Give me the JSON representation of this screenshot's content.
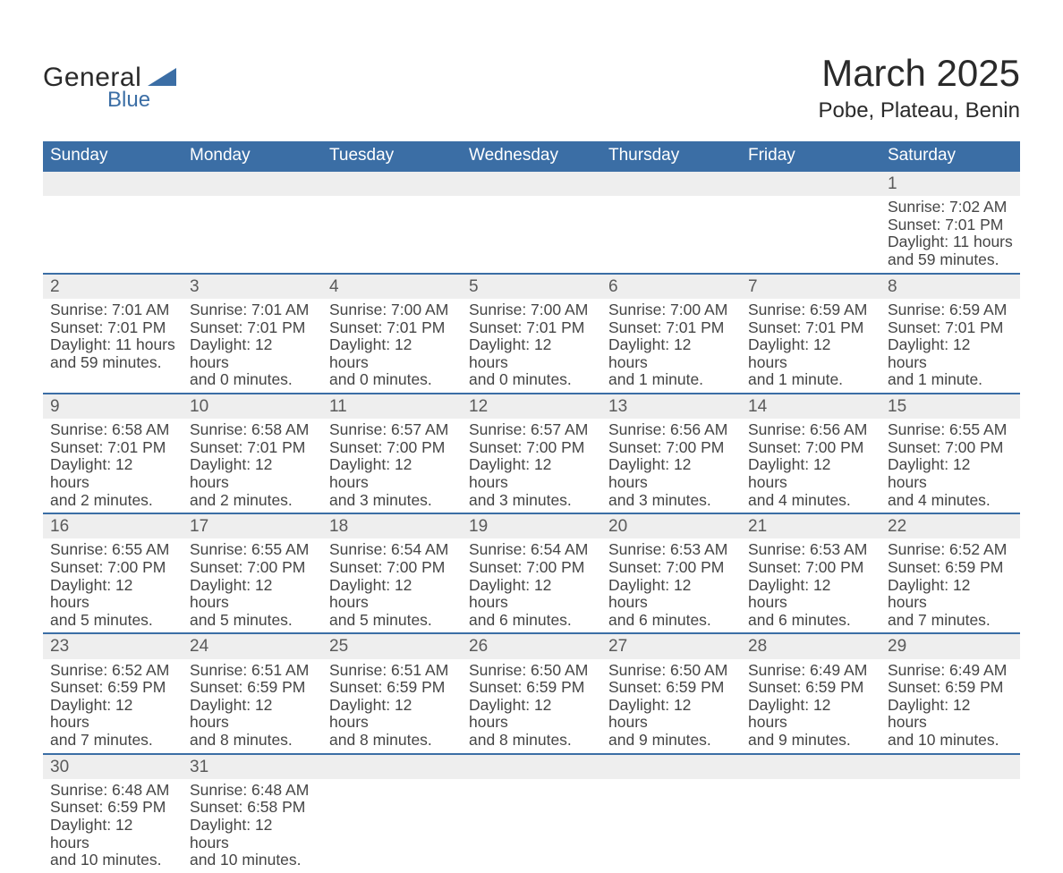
{
  "brand": {
    "general": "General",
    "blue": "Blue",
    "shape_color": "#3b6ea5"
  },
  "title": "March 2025",
  "subtitle": "Pobe, Plateau, Benin",
  "header_bg": "#3b6ea5",
  "daynum_bg": "#eeeeee",
  "border_color": "#3b6ea5",
  "text_color": "#454545",
  "font_size_body_pt": 13,
  "font_size_daynum_pt": 14,
  "font_size_header_pt": 14,
  "font_size_title_pt": 32,
  "font_size_subtitle_pt": 18,
  "days_of_week": [
    "Sunday",
    "Monday",
    "Tuesday",
    "Wednesday",
    "Thursday",
    "Friday",
    "Saturday"
  ],
  "weeks": [
    [
      null,
      null,
      null,
      null,
      null,
      null,
      {
        "n": "1",
        "sunrise": "Sunrise: 7:02 AM",
        "sunset": "Sunset: 7:01 PM",
        "day1": "Daylight: 11 hours",
        "day2": "and 59 minutes."
      }
    ],
    [
      {
        "n": "2",
        "sunrise": "Sunrise: 7:01 AM",
        "sunset": "Sunset: 7:01 PM",
        "day1": "Daylight: 11 hours",
        "day2": "and 59 minutes."
      },
      {
        "n": "3",
        "sunrise": "Sunrise: 7:01 AM",
        "sunset": "Sunset: 7:01 PM",
        "day1": "Daylight: 12 hours",
        "day2": "and 0 minutes."
      },
      {
        "n": "4",
        "sunrise": "Sunrise: 7:00 AM",
        "sunset": "Sunset: 7:01 PM",
        "day1": "Daylight: 12 hours",
        "day2": "and 0 minutes."
      },
      {
        "n": "5",
        "sunrise": "Sunrise: 7:00 AM",
        "sunset": "Sunset: 7:01 PM",
        "day1": "Daylight: 12 hours",
        "day2": "and 0 minutes."
      },
      {
        "n": "6",
        "sunrise": "Sunrise: 7:00 AM",
        "sunset": "Sunset: 7:01 PM",
        "day1": "Daylight: 12 hours",
        "day2": "and 1 minute."
      },
      {
        "n": "7",
        "sunrise": "Sunrise: 6:59 AM",
        "sunset": "Sunset: 7:01 PM",
        "day1": "Daylight: 12 hours",
        "day2": "and 1 minute."
      },
      {
        "n": "8",
        "sunrise": "Sunrise: 6:59 AM",
        "sunset": "Sunset: 7:01 PM",
        "day1": "Daylight: 12 hours",
        "day2": "and 1 minute."
      }
    ],
    [
      {
        "n": "9",
        "sunrise": "Sunrise: 6:58 AM",
        "sunset": "Sunset: 7:01 PM",
        "day1": "Daylight: 12 hours",
        "day2": "and 2 minutes."
      },
      {
        "n": "10",
        "sunrise": "Sunrise: 6:58 AM",
        "sunset": "Sunset: 7:01 PM",
        "day1": "Daylight: 12 hours",
        "day2": "and 2 minutes."
      },
      {
        "n": "11",
        "sunrise": "Sunrise: 6:57 AM",
        "sunset": "Sunset: 7:00 PM",
        "day1": "Daylight: 12 hours",
        "day2": "and 3 minutes."
      },
      {
        "n": "12",
        "sunrise": "Sunrise: 6:57 AM",
        "sunset": "Sunset: 7:00 PM",
        "day1": "Daylight: 12 hours",
        "day2": "and 3 minutes."
      },
      {
        "n": "13",
        "sunrise": "Sunrise: 6:56 AM",
        "sunset": "Sunset: 7:00 PM",
        "day1": "Daylight: 12 hours",
        "day2": "and 3 minutes."
      },
      {
        "n": "14",
        "sunrise": "Sunrise: 6:56 AM",
        "sunset": "Sunset: 7:00 PM",
        "day1": "Daylight: 12 hours",
        "day2": "and 4 minutes."
      },
      {
        "n": "15",
        "sunrise": "Sunrise: 6:55 AM",
        "sunset": "Sunset: 7:00 PM",
        "day1": "Daylight: 12 hours",
        "day2": "and 4 minutes."
      }
    ],
    [
      {
        "n": "16",
        "sunrise": "Sunrise: 6:55 AM",
        "sunset": "Sunset: 7:00 PM",
        "day1": "Daylight: 12 hours",
        "day2": "and 5 minutes."
      },
      {
        "n": "17",
        "sunrise": "Sunrise: 6:55 AM",
        "sunset": "Sunset: 7:00 PM",
        "day1": "Daylight: 12 hours",
        "day2": "and 5 minutes."
      },
      {
        "n": "18",
        "sunrise": "Sunrise: 6:54 AM",
        "sunset": "Sunset: 7:00 PM",
        "day1": "Daylight: 12 hours",
        "day2": "and 5 minutes."
      },
      {
        "n": "19",
        "sunrise": "Sunrise: 6:54 AM",
        "sunset": "Sunset: 7:00 PM",
        "day1": "Daylight: 12 hours",
        "day2": "and 6 minutes."
      },
      {
        "n": "20",
        "sunrise": "Sunrise: 6:53 AM",
        "sunset": "Sunset: 7:00 PM",
        "day1": "Daylight: 12 hours",
        "day2": "and 6 minutes."
      },
      {
        "n": "21",
        "sunrise": "Sunrise: 6:53 AM",
        "sunset": "Sunset: 7:00 PM",
        "day1": "Daylight: 12 hours",
        "day2": "and 6 minutes."
      },
      {
        "n": "22",
        "sunrise": "Sunrise: 6:52 AM",
        "sunset": "Sunset: 6:59 PM",
        "day1": "Daylight: 12 hours",
        "day2": "and 7 minutes."
      }
    ],
    [
      {
        "n": "23",
        "sunrise": "Sunrise: 6:52 AM",
        "sunset": "Sunset: 6:59 PM",
        "day1": "Daylight: 12 hours",
        "day2": "and 7 minutes."
      },
      {
        "n": "24",
        "sunrise": "Sunrise: 6:51 AM",
        "sunset": "Sunset: 6:59 PM",
        "day1": "Daylight: 12 hours",
        "day2": "and 8 minutes."
      },
      {
        "n": "25",
        "sunrise": "Sunrise: 6:51 AM",
        "sunset": "Sunset: 6:59 PM",
        "day1": "Daylight: 12 hours",
        "day2": "and 8 minutes."
      },
      {
        "n": "26",
        "sunrise": "Sunrise: 6:50 AM",
        "sunset": "Sunset: 6:59 PM",
        "day1": "Daylight: 12 hours",
        "day2": "and 8 minutes."
      },
      {
        "n": "27",
        "sunrise": "Sunrise: 6:50 AM",
        "sunset": "Sunset: 6:59 PM",
        "day1": "Daylight: 12 hours",
        "day2": "and 9 minutes."
      },
      {
        "n": "28",
        "sunrise": "Sunrise: 6:49 AM",
        "sunset": "Sunset: 6:59 PM",
        "day1": "Daylight: 12 hours",
        "day2": "and 9 minutes."
      },
      {
        "n": "29",
        "sunrise": "Sunrise: 6:49 AM",
        "sunset": "Sunset: 6:59 PM",
        "day1": "Daylight: 12 hours",
        "day2": "and 10 minutes."
      }
    ],
    [
      {
        "n": "30",
        "sunrise": "Sunrise: 6:48 AM",
        "sunset": "Sunset: 6:59 PM",
        "day1": "Daylight: 12 hours",
        "day2": "and 10 minutes."
      },
      {
        "n": "31",
        "sunrise": "Sunrise: 6:48 AM",
        "sunset": "Sunset: 6:58 PM",
        "day1": "Daylight: 12 hours",
        "day2": "and 10 minutes."
      },
      null,
      null,
      null,
      null,
      null
    ]
  ]
}
